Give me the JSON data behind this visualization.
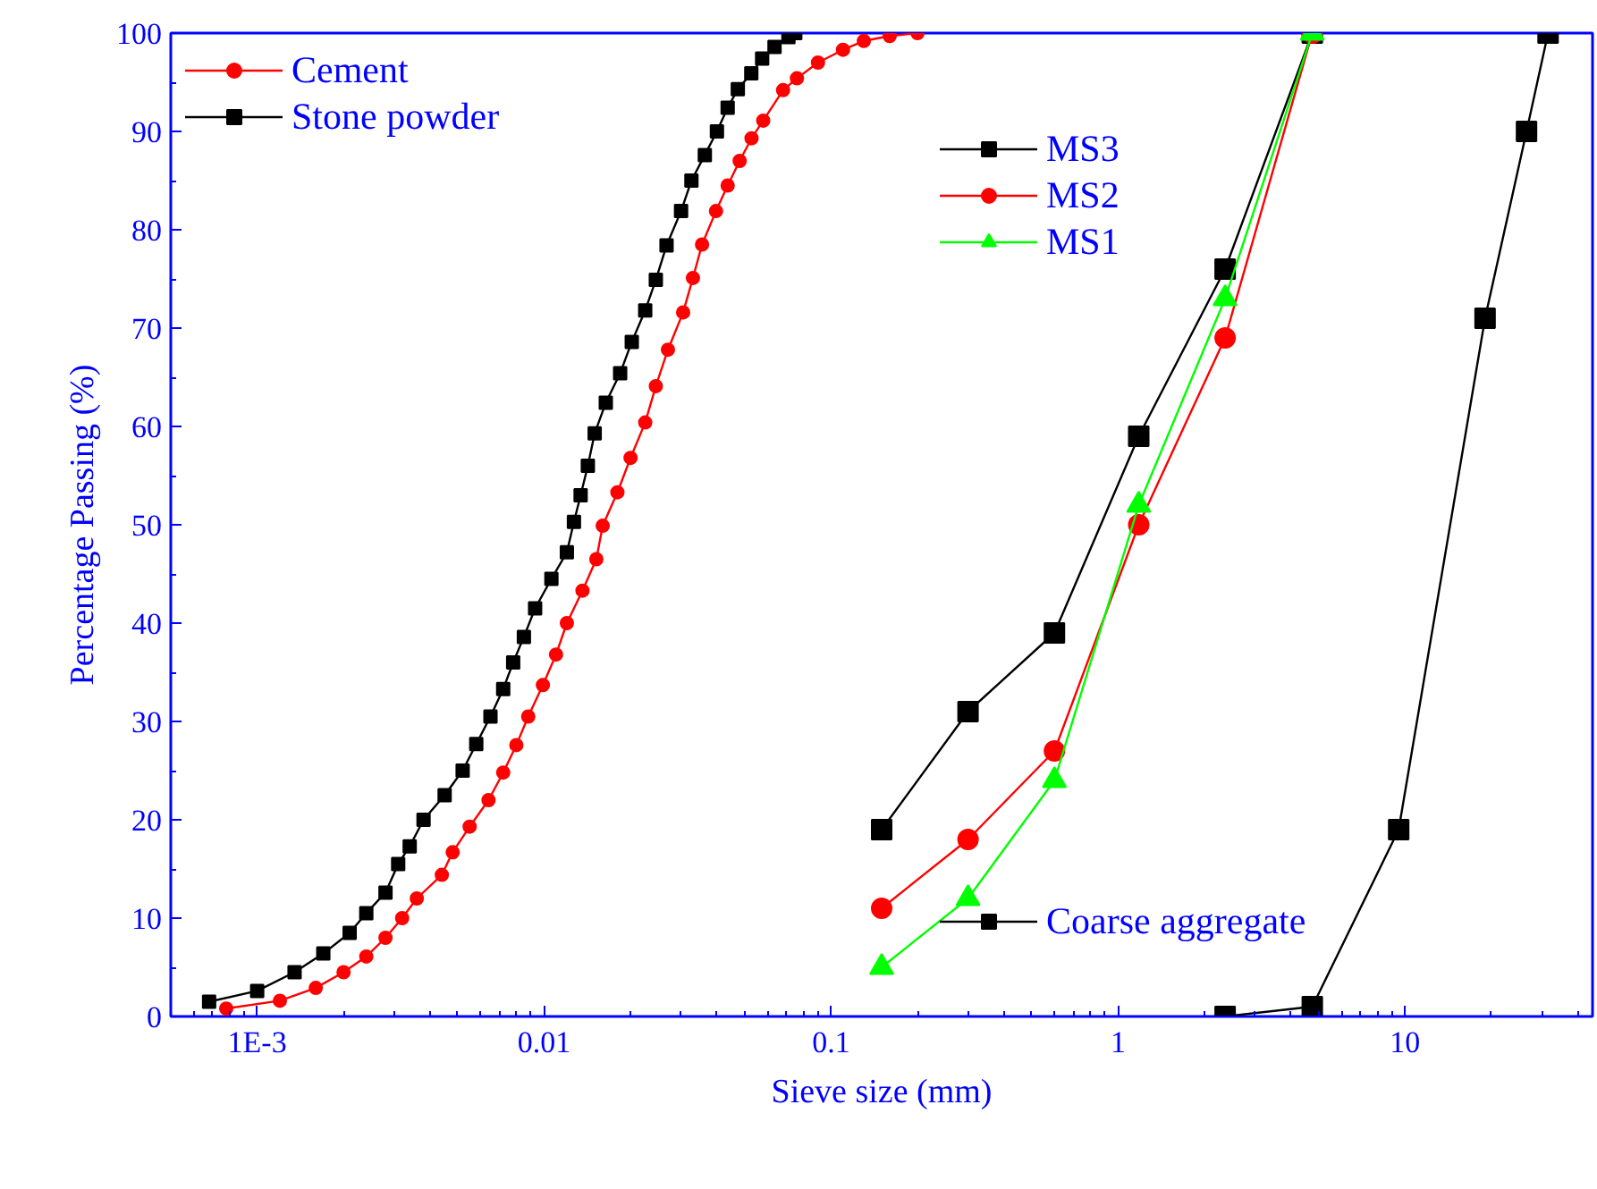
{
  "chart_data": {
    "type": "line",
    "xlabel": "Sieve size (mm)",
    "ylabel": "Percentage Passing (%)",
    "log": "x",
    "xlim": [
      0.0005,
      45
    ],
    "ylim": [
      0,
      100
    ],
    "xticks": [
      {
        "value": 0.001,
        "label": "1E-3"
      },
      0.01,
      0.1,
      1,
      10
    ],
    "yticks": [
      0,
      10,
      20,
      30,
      40,
      50,
      60,
      70,
      80,
      90,
      100
    ],
    "grid": false,
    "legend": "top left",
    "line_style": "solid",
    "series": [
      {
        "name": "Cement",
        "color": "#ff0000",
        "marker": "circle",
        "x": [
          0.00078,
          0.0012,
          0.0016,
          0.002,
          0.0024,
          0.0028,
          0.0032,
          0.0036,
          0.0044,
          0.0048,
          0.0055,
          0.0064,
          0.0072,
          0.008,
          0.0088,
          0.0099,
          0.011,
          0.012,
          0.0136,
          0.0152,
          0.016,
          0.018,
          0.02,
          0.0225,
          0.0245,
          0.027,
          0.0305,
          0.033,
          0.0355,
          0.0397,
          0.0436,
          0.048,
          0.0528,
          0.058,
          0.068,
          0.076,
          0.09,
          0.11,
          0.13,
          0.16,
          0.2
        ],
        "values": [
          0.8,
          1.6,
          2.9,
          4.5,
          6.1,
          8,
          10,
          12,
          14.4,
          16.7,
          19.3,
          22,
          24.8,
          27.6,
          30.5,
          33.7,
          36.8,
          40,
          43.3,
          46.5,
          49.9,
          53.3,
          56.8,
          60.4,
          64.1,
          67.8,
          71.6,
          75.1,
          78.5,
          81.9,
          84.5,
          87,
          89.3,
          91.1,
          94.2,
          95.4,
          97,
          98.3,
          99.2,
          99.7,
          100
        ]
      },
      {
        "name": "Stone powder",
        "color": "#000000",
        "marker": "square",
        "x": [
          0.00068,
          0.001,
          0.00135,
          0.0017,
          0.0021,
          0.0024,
          0.0028,
          0.0031,
          0.0034,
          0.0038,
          0.0045,
          0.0052,
          0.0058,
          0.0065,
          0.0072,
          0.0078,
          0.0085,
          0.0093,
          0.0106,
          0.012,
          0.0127,
          0.0134,
          0.0142,
          0.015,
          0.0164,
          0.0184,
          0.0202,
          0.0225,
          0.0245,
          0.0267,
          0.03,
          0.0326,
          0.0363,
          0.04,
          0.0436,
          0.0473,
          0.0527,
          0.0575,
          0.0635,
          0.071,
          0.075
        ],
        "values": [
          1.5,
          2.6,
          4.5,
          6.4,
          8.5,
          10.5,
          12.6,
          15.5,
          17.3,
          20,
          22.5,
          25,
          27.7,
          30.5,
          33.3,
          36,
          38.6,
          41.5,
          44.5,
          47.2,
          50.3,
          53,
          56,
          59.3,
          62.4,
          65.4,
          68.6,
          71.8,
          74.9,
          78.4,
          81.9,
          85,
          87.6,
          90,
          92.4,
          94.3,
          95.9,
          97.4,
          98.6,
          99.6,
          100
        ]
      },
      {
        "name": "MS3",
        "color": "#000000",
        "marker": "square",
        "x": [
          0.15,
          0.3,
          0.6,
          1.18,
          2.36,
          4.75
        ],
        "values": [
          19,
          31,
          39,
          59,
          76,
          100
        ]
      },
      {
        "name": "MS2",
        "color": "#ff0000",
        "marker": "circle",
        "x": [
          0.15,
          0.3,
          0.6,
          1.18,
          2.36,
          4.75
        ],
        "values": [
          11,
          18,
          27,
          50,
          69,
          100
        ]
      },
      {
        "name": "MS1",
        "color": "#00ff00",
        "marker": "triangle",
        "x": [
          0.15,
          0.3,
          0.6,
          1.18,
          2.36,
          4.75
        ],
        "values": [
          5,
          12,
          24,
          52,
          73,
          100
        ]
      },
      {
        "name": "Coarse aggregate",
        "color": "#000000",
        "marker": "square",
        "x": [
          2.36,
          4.75,
          9.5,
          19,
          26.5,
          31.5
        ],
        "values": [
          0,
          1,
          19,
          71,
          90,
          100
        ]
      }
    ]
  }
}
